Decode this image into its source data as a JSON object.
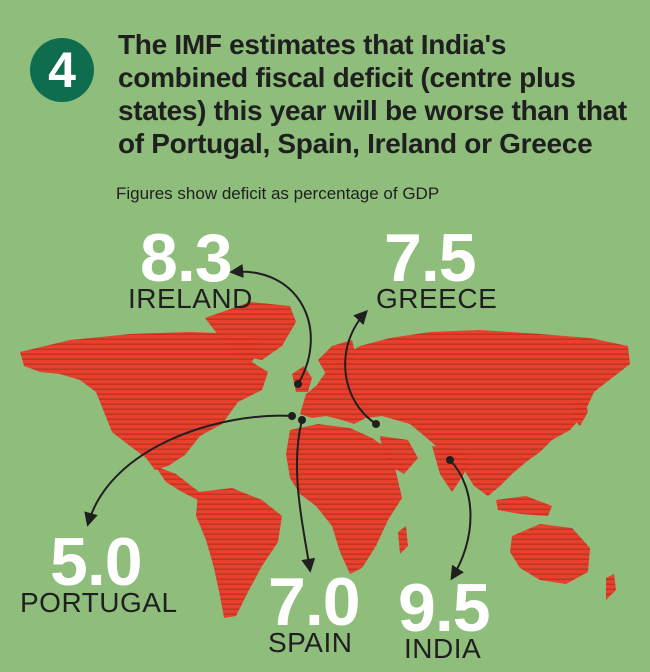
{
  "badge": {
    "number": "4"
  },
  "headline": {
    "lines": [
      "The IMF estimates that India's",
      "combined fiscal deficit (centre plus",
      "states) this year will be worse than that",
      "of Portugal, Spain, Ireland or Greece"
    ]
  },
  "subtitle": "Figures show deficit as percentage of GDP",
  "colors": {
    "background": "#8fbd7c",
    "land": "#e8402d",
    "badge": "#0f6d4f",
    "value_text": "#ffffff",
    "text": "#1f1f1f"
  },
  "chart_data": {
    "type": "map",
    "title": "",
    "unit": "",
    "values": [
      {
        "country": "IRELAND",
        "value": "8.3"
      },
      {
        "country": "GREECE",
        "value": "7.5"
      },
      {
        "country": "PORTUGAL",
        "value": "5.0"
      },
      {
        "country": "SPAIN",
        "value": "7.0"
      },
      {
        "country": "INDIA",
        "value": "9.5"
      }
    ]
  }
}
